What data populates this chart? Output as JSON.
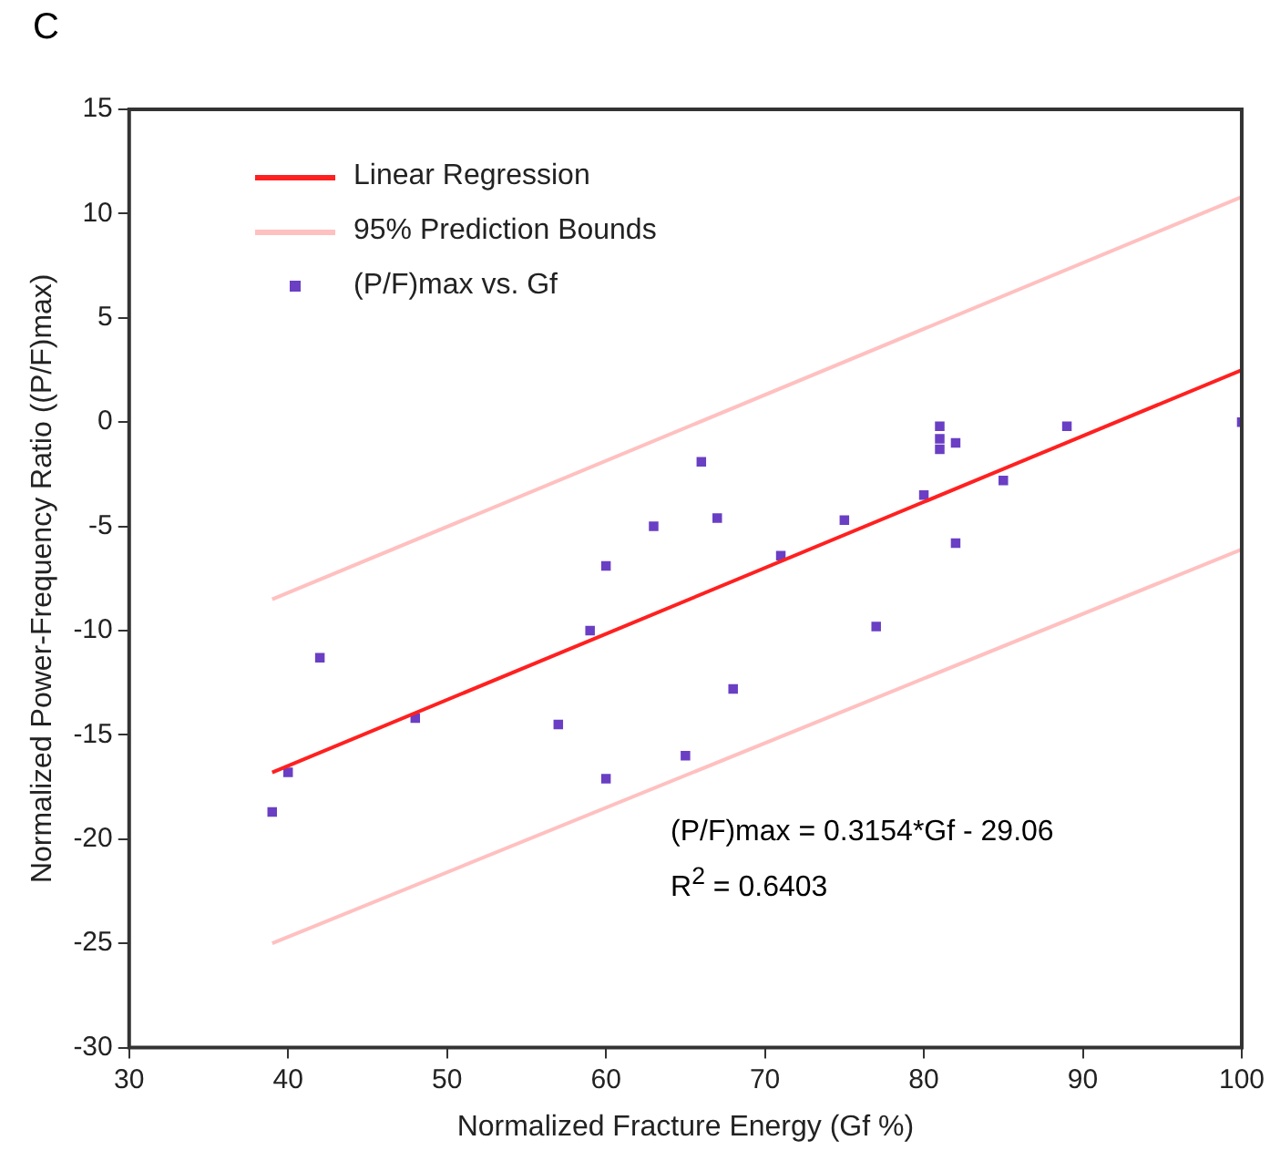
{
  "chart_data": {
    "type": "scatter",
    "title": "C",
    "xlabel": "Normalized Fracture Energy (Gf %)",
    "ylabel": "Normalized Power-Frequency Ratio ((P/F)max)",
    "xlim": [
      30,
      100
    ],
    "xticks": [
      30,
      40,
      50,
      60,
      70,
      80,
      90,
      100
    ],
    "ylim": [
      -30,
      15
    ],
    "yticks": [
      -30,
      -25,
      -20,
      -15,
      -10,
      -5,
      0,
      5,
      10,
      15
    ],
    "grid": false,
    "legend": "top left",
    "series": [
      {
        "name": "Linear Regression",
        "type": "line",
        "color": "#ff2020",
        "x": [
          39,
          100
        ],
        "values": [
          -16.8,
          2.5
        ]
      },
      {
        "name": "95% Prediction Bounds",
        "type": "line",
        "color": "#ffc0c0",
        "x": [
          39,
          100
        ],
        "values": [
          -8.5,
          10.8
        ]
      },
      {
        "type": "line",
        "color": "#ffc0c0",
        "x": [
          39,
          100
        ],
        "values": [
          -25,
          -6.1
        ]
      },
      {
        "name": "(P/F)max vs. Gf",
        "marker": "square",
        "color": "#6a3fc4",
        "x": [
          39,
          40,
          42,
          48,
          57,
          59,
          60,
          60,
          63,
          65,
          66,
          67,
          68,
          71,
          75,
          77,
          80,
          81,
          81,
          81,
          82,
          82,
          85,
          89,
          100
        ],
        "values": [
          -18.7,
          -16.8,
          -11.3,
          -14.2,
          -14.5,
          -10,
          -6.9,
          -17.1,
          -5,
          -16,
          -1.9,
          -4.6,
          -12.8,
          -6.4,
          -4.7,
          -9.8,
          -3.5,
          -0.2,
          -0.8,
          -1.3,
          -1,
          -5.8,
          -2.8,
          -0.2,
          0
        ]
      }
    ],
    "annotations": [
      "(P/F)max = 0.3154*Gf - 29.06",
      "R$^{2}$ = 0.6403"
    ]
  }
}
